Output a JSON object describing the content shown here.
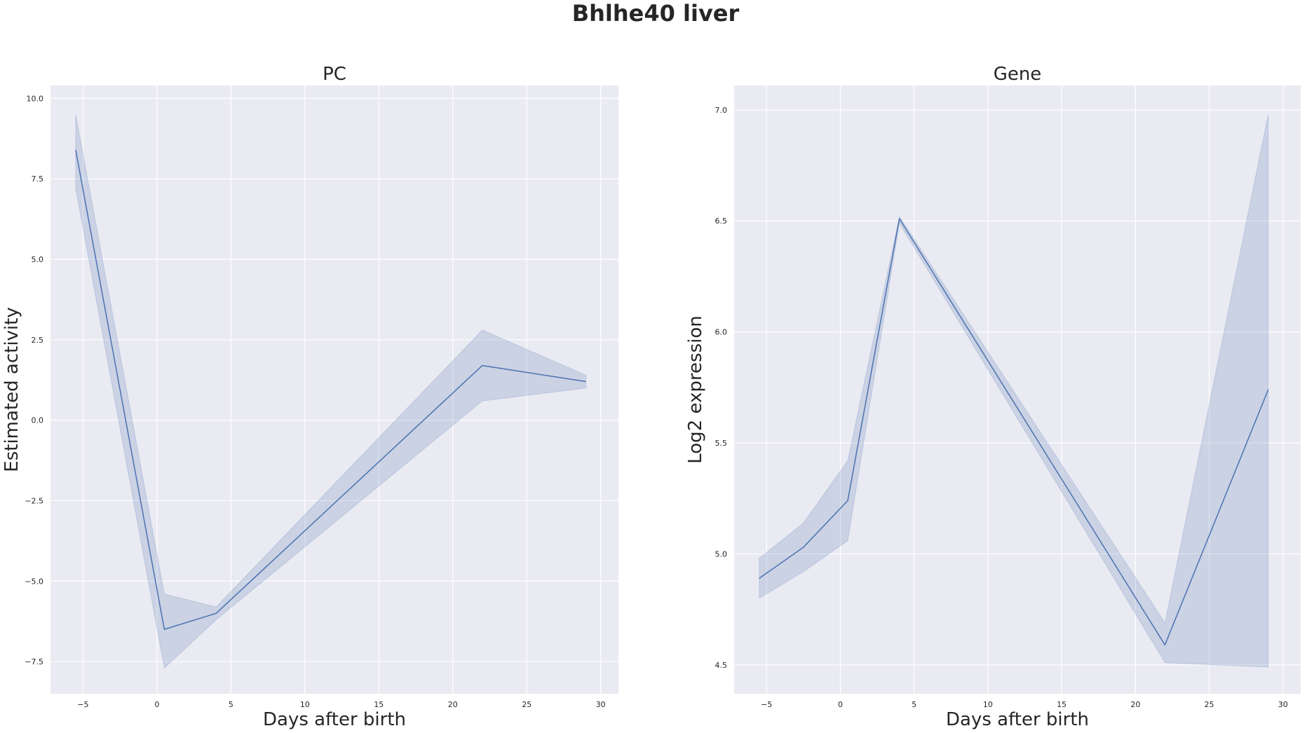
{
  "figure": {
    "title": "Bhlhe40 liver"
  },
  "colors": {
    "plot_background": "#eaeaf2",
    "grid": "#ffffff",
    "series": "#4c72b0"
  },
  "chart_data": [
    {
      "type": "line",
      "title": "PC",
      "xlabel": "Days after birth",
      "ylabel": "Estimated activity",
      "xlim": [
        -7.2,
        31.2
      ],
      "ylim": [
        -8.5,
        10.4
      ],
      "xticks": [
        -5,
        0,
        5,
        10,
        15,
        20,
        25,
        30
      ],
      "xtick_labels": [
        "−5",
        "0",
        "5",
        "10",
        "15",
        "20",
        "25",
        "30"
      ],
      "yticks": [
        -7.5,
        -5.0,
        -2.5,
        0.0,
        2.5,
        5.0,
        7.5,
        10.0
      ],
      "ytick_labels": [
        "−7.5",
        "−5.0",
        "−2.5",
        "0.0",
        "2.5",
        "5.0",
        "7.5",
        "10.0"
      ],
      "grid": true,
      "series": [
        {
          "x": [
            -5.5,
            0.5,
            4,
            22,
            29
          ],
          "y": [
            8.4,
            -6.5,
            -6.0,
            1.7,
            1.2
          ],
          "ci_low": [
            7.2,
            -7.7,
            -6.2,
            0.6,
            1.0
          ],
          "ci_high": [
            9.5,
            -5.4,
            -5.8,
            2.8,
            1.4
          ]
        }
      ]
    },
    {
      "type": "line",
      "title": "Gene",
      "xlabel": "Days after birth",
      "ylabel": "Log2 expression",
      "xlim": [
        -7.2,
        31.2
      ],
      "ylim": [
        4.37,
        7.11
      ],
      "xticks": [
        -5,
        0,
        5,
        10,
        15,
        20,
        25,
        30
      ],
      "xtick_labels": [
        "−5",
        "0",
        "5",
        "10",
        "15",
        "20",
        "25",
        "30"
      ],
      "yticks": [
        4.5,
        5.0,
        5.5,
        6.0,
        6.5,
        7.0
      ],
      "ytick_labels": [
        "4.5",
        "5.0",
        "5.5",
        "6.0",
        "6.5",
        "7.0"
      ],
      "grid": true,
      "series": [
        {
          "x": [
            -5.5,
            -2.5,
            0.5,
            4,
            22,
            29
          ],
          "y": [
            4.89,
            5.03,
            5.24,
            6.51,
            4.59,
            5.74
          ],
          "ci_low": [
            4.8,
            4.92,
            5.06,
            6.49,
            4.51,
            4.49
          ],
          "ci_high": [
            4.98,
            5.14,
            5.42,
            6.52,
            4.69,
            6.98
          ]
        }
      ]
    }
  ]
}
